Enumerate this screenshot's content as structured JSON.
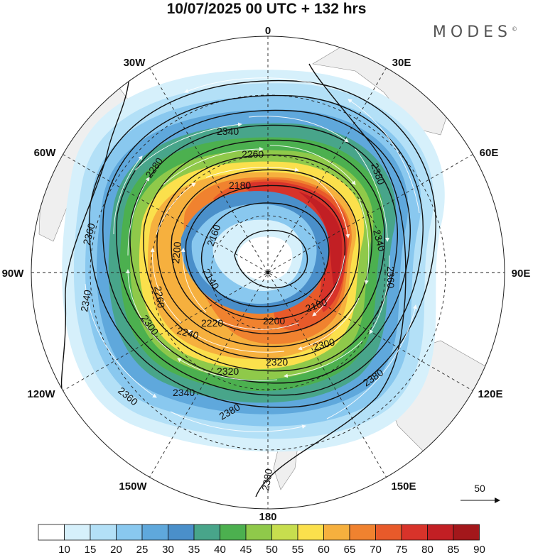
{
  "title": "10/07/2025  00 UTC  + 132 hrs",
  "brand": "MODES",
  "brand_mark": "©",
  "longitude_labels": {
    "top": "0",
    "top_left": "30W",
    "top_right": "30E",
    "upper_left": "60W",
    "upper_right": "60E",
    "left": "90W",
    "right": "90E",
    "lower_left": "120W",
    "lower_right": "120E",
    "bottom_left": "150W",
    "bottom_right": "150E",
    "bottom": "180"
  },
  "contour_labels": [
    "2340",
    "2260",
    "2180",
    "2160",
    "2200",
    "2260",
    "2280",
    "2300",
    "2240",
    "2220",
    "2200",
    "2180",
    "2320",
    "2340",
    "2360",
    "2380",
    "2380",
    "2380",
    "2360",
    "2340",
    "2320",
    "2300",
    "2360",
    "2380",
    "2340",
    "2140"
  ],
  "reference_vector": {
    "value": "50"
  },
  "colorbar": {
    "labels": [
      "10",
      "15",
      "20",
      "25",
      "30",
      "35",
      "40",
      "45",
      "50",
      "55",
      "60",
      "65",
      "70",
      "75",
      "80",
      "85",
      "90"
    ],
    "colors": [
      "#ffffff",
      "#d6f0fb",
      "#b3e0f7",
      "#89c8ef",
      "#5fa8dc",
      "#4a8fca",
      "#48a58a",
      "#4cb04f",
      "#8fc94a",
      "#c7de4e",
      "#fbe04c",
      "#f6b03e",
      "#f0822f",
      "#e85a2a",
      "#d8332a",
      "#c21f24",
      "#a3171b"
    ]
  }
}
